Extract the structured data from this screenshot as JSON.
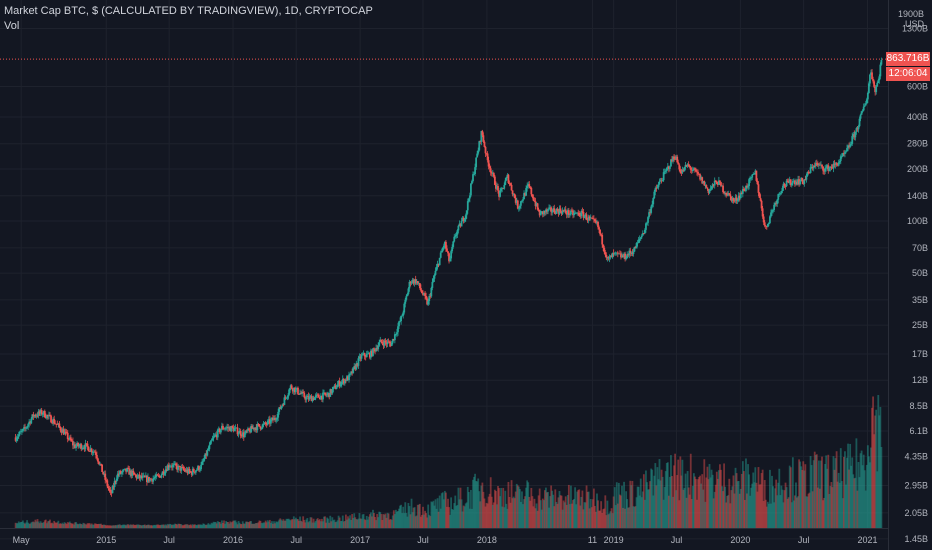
{
  "header": {
    "title": "Market Cap BTC, $ (CALCULATED BY TRADINGVIEW), 1D, CRYPTOCAP",
    "volume_label": "Vol"
  },
  "axis": {
    "top_label": "1900B",
    "unit": "USD"
  },
  "price_badge": {
    "value": "863.716B",
    "countdown": "12:06:04",
    "color": "#ef5350"
  },
  "colors": {
    "background": "#131722",
    "up": "#26a69a",
    "down": "#ef5350",
    "grid": "#1e222d",
    "text": "#b2b5be"
  },
  "chart_data": {
    "type": "line",
    "scale": "log",
    "x_tick_labels": [
      "May",
      "2015",
      "Jul",
      "2016",
      "Jul",
      "2017",
      "Jul",
      "2018",
      "11",
      "2019",
      "Jul",
      "2020",
      "Jul",
      "2021"
    ],
    "y_tick_labels": [
      "1300B",
      "863.716B",
      "600B",
      "400B",
      "280B",
      "200B",
      "140B",
      "100B",
      "70B",
      "50B",
      "35B",
      "25B",
      "17B",
      "12B",
      "8.5B",
      "6.1B",
      "4.35B",
      "2.95B",
      "2.05B",
      "1.45B"
    ],
    "y_tick_values": [
      1300,
      863.716,
      600,
      400,
      280,
      200,
      140,
      100,
      70,
      50,
      35,
      25,
      17,
      12,
      8.5,
      6.1,
      4.35,
      2.95,
      2.05,
      1.45
    ],
    "ylim": [
      1.25,
      1900
    ],
    "series": [
      {
        "x": [
          "2014-04-15",
          "2014-05-10",
          "2014-06-05",
          "2014-07-01",
          "2014-08-01",
          "2014-09-01",
          "2014-10-01",
          "2014-11-01",
          "2014-12-01",
          "2015-01-14",
          "2015-02-01",
          "2015-03-01",
          "2015-04-01",
          "2015-05-01",
          "2015-06-01",
          "2015-07-01",
          "2015-08-01",
          "2015-09-01",
          "2015-10-01",
          "2015-11-04",
          "2015-12-01",
          "2016-01-01",
          "2016-02-01",
          "2016-03-01",
          "2016-04-01",
          "2016-05-01",
          "2016-06-15",
          "2016-07-01",
          "2016-08-01",
          "2016-09-01",
          "2016-10-01",
          "2016-11-01",
          "2016-12-01",
          "2017-01-04",
          "2017-02-01",
          "2017-03-01",
          "2017-04-01",
          "2017-05-01",
          "2017-05-25",
          "2017-06-12",
          "2017-07-15",
          "2017-08-01",
          "2017-09-01",
          "2017-09-15",
          "2017-10-01",
          "2017-11-01",
          "2017-12-17",
          "2018-01-01",
          "2018-02-06",
          "2018-03-01",
          "2018-04-01",
          "2018-05-01",
          "2018-06-01",
          "2018-07-01",
          "2018-08-01",
          "2018-09-01",
          "2018-10-01",
          "2018-11-15",
          "2018-12-15",
          "2019-01-01",
          "2019-02-01",
          "2019-03-01",
          "2019-04-01",
          "2019-05-01",
          "2019-06-26",
          "2019-07-15",
          "2019-08-01",
          "2019-09-01",
          "2019-10-01",
          "2019-10-26",
          "2019-11-15",
          "2019-12-15",
          "2020-01-15",
          "2020-02-13",
          "2020-03-13",
          "2020-04-01",
          "2020-05-01",
          "2020-06-01",
          "2020-07-01",
          "2020-08-01",
          "2020-09-01",
          "2020-10-01",
          "2020-11-01",
          "2020-12-01",
          "2021-01-01",
          "2021-01-10",
          "2021-01-22",
          "2021-02-01",
          "2021-02-10"
        ],
        "values": [
          5.6,
          6.2,
          7.5,
          7.8,
          7.0,
          6.0,
          5.0,
          5.0,
          4.6,
          2.6,
          3.4,
          3.6,
          3.3,
          3.2,
          3.3,
          3.9,
          3.7,
          3.5,
          3.8,
          5.5,
          6.4,
          6.3,
          5.8,
          6.4,
          6.6,
          7.2,
          11.0,
          10.5,
          9.4,
          9.6,
          9.9,
          11.5,
          12.5,
          16.5,
          17.0,
          20.0,
          19.5,
          28.0,
          45.0,
          45.0,
          33.0,
          47.0,
          75.0,
          58.0,
          82.0,
          110.0,
          330.0,
          230.0,
          140.0,
          180.0,
          120.0,
          160.0,
          110.0,
          115.0,
          115.0,
          110.0,
          110.0,
          95.0,
          59.0,
          64.0,
          62.0,
          68.0,
          90.0,
          150.0,
          240.0,
          190.0,
          210.0,
          185.0,
          150.0,
          170.0,
          150.0,
          130.0,
          155.0,
          190.0,
          89.0,
          115.0,
          160.0,
          170.0,
          170.0,
          215.0,
          200.0,
          210.0,
          250.0,
          340.0,
          530.0,
          760.0,
          570.0,
          650.0,
          863.7
        ]
      }
    ],
    "volume_note": "volume histogram with up/down colored bars at bottom"
  }
}
